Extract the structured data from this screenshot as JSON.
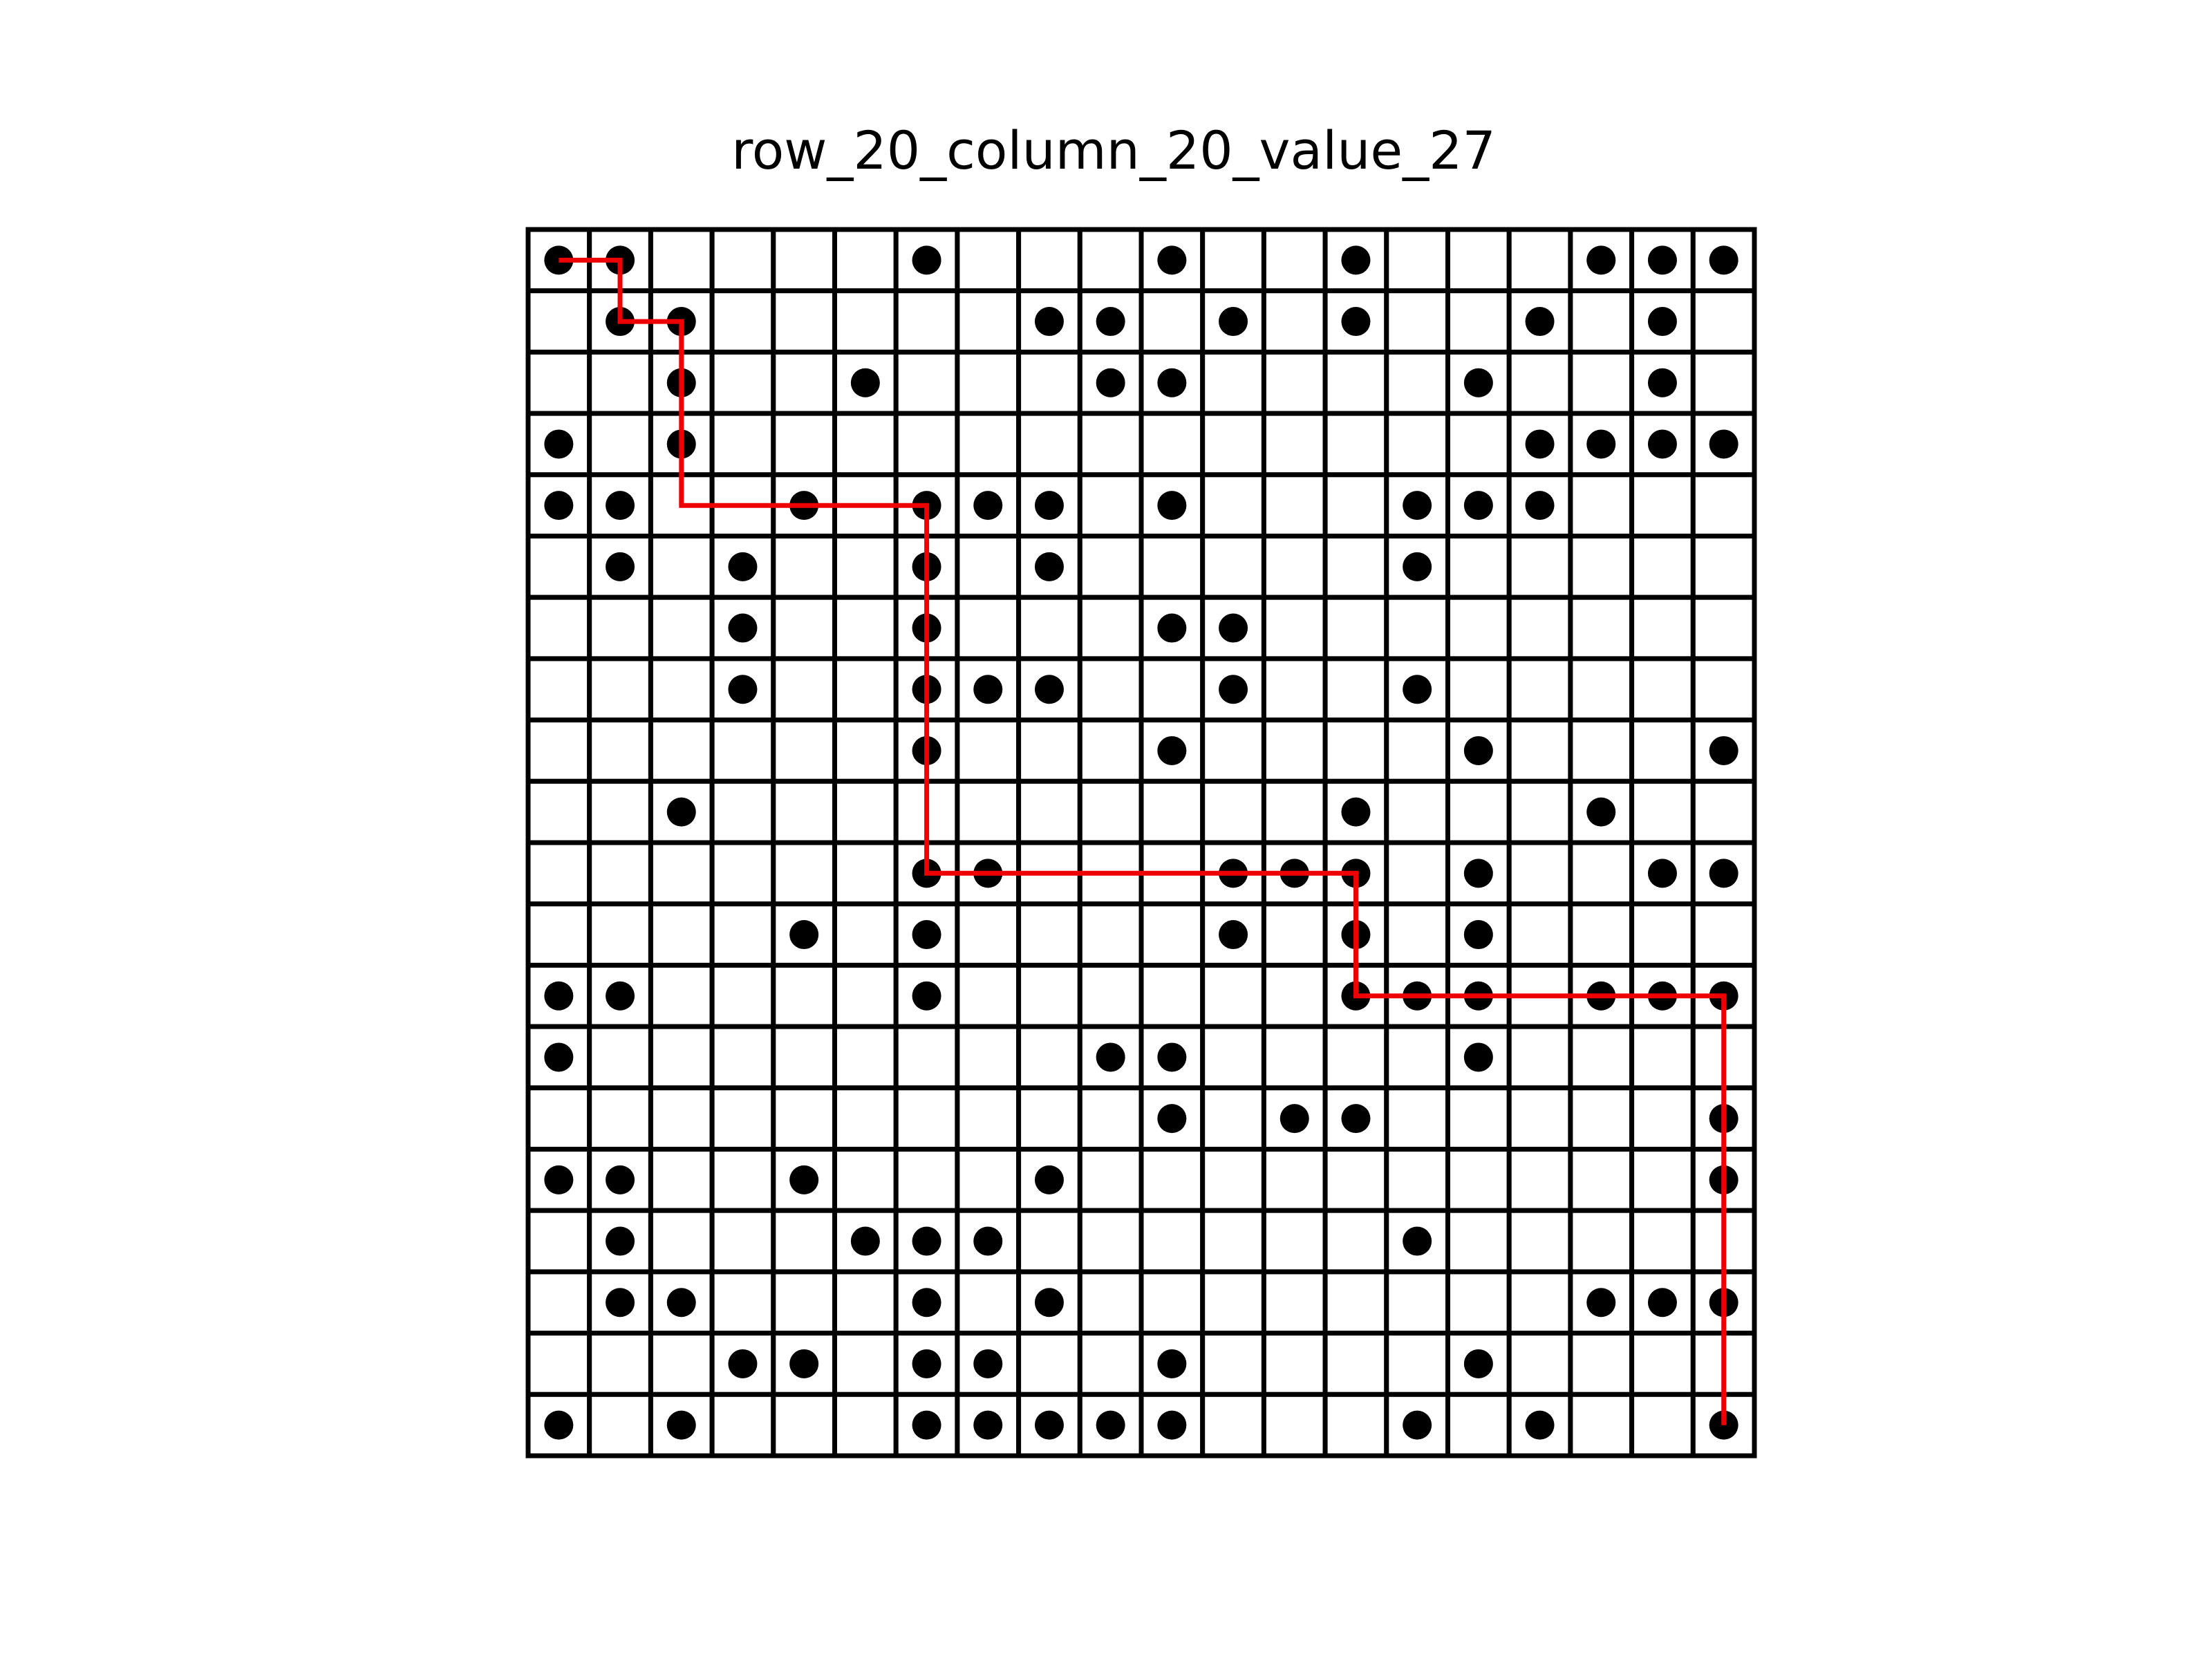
{
  "title": "row_20_column_20_value_27",
  "grid": {
    "rows": 20,
    "columns": 20,
    "cells": [
      "11000010001001000111",
      "01100000110101001010",
      "00100100011000010010",
      "10100000000000001111",
      "11001011101000111000",
      "01010010100000100000",
      "00010010001100000000",
      "00010011100100100000",
      "00000010001000010001",
      "00100000000001000100",
      "00000011000111010011",
      "00001010000101010000",
      "11000010000001110111",
      "10000000011000010000",
      "00000000001011000001",
      "11001000100000000001",
      "01000111000000100000",
      "01100010100000000111",
      "00011011001000010000",
      "10100011111000101001"
    ]
  },
  "path": {
    "color": "#ee0000",
    "cells": [
      [
        1,
        1
      ],
      [
        1,
        2
      ],
      [
        2,
        2
      ],
      [
        2,
        3
      ],
      [
        5,
        3
      ],
      [
        5,
        7
      ],
      [
        11,
        7
      ],
      [
        11,
        14
      ],
      [
        13,
        14
      ],
      [
        13,
        20
      ],
      [
        20,
        20
      ]
    ]
  },
  "colors": {
    "grid_line": "#000000",
    "dot": "#000000",
    "background": "#ffffff"
  }
}
